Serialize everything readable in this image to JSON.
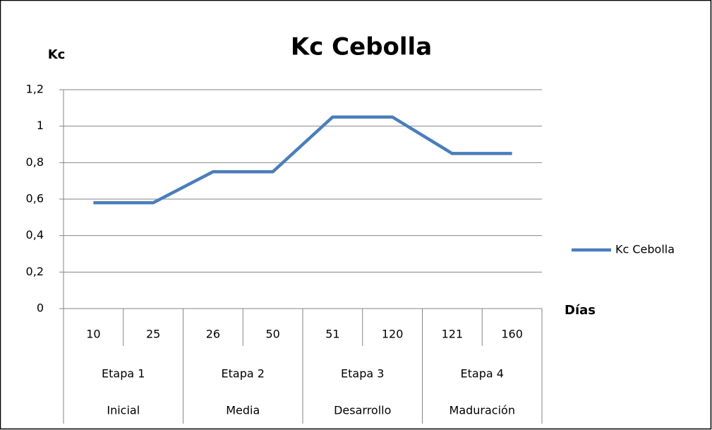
{
  "chart_data": {
    "type": "line",
    "title": "Kc Cebolla",
    "y_label": "Kc",
    "x_label": "Días",
    "categories": [
      "10",
      "25",
      "26",
      "50",
      "51",
      "120",
      "121",
      "160"
    ],
    "stage_labels": [
      "Etapa 1",
      "Etapa 2",
      "Etapa 3",
      "Etapa 4"
    ],
    "phase_labels": [
      "Inicial",
      "Media",
      "Desarrollo",
      "Maduración"
    ],
    "series": [
      {
        "name": "Kc Cebolla",
        "color": "#4a7ebb",
        "values": [
          0.58,
          0.58,
          0.75,
          0.75,
          1.05,
          1.05,
          0.85,
          0.85
        ]
      }
    ],
    "ylim": [
      0,
      1.2
    ],
    "yticks": [
      0,
      {
        "value": 0.2,
        "label": "0,2"
      },
      {
        "value": 0.4,
        "label": "0,4"
      },
      {
        "value": 0.6,
        "label": "0,6"
      },
      {
        "value": 0.8,
        "label": "0,8"
      },
      1,
      {
        "value": 1.2,
        "label": "1,2"
      }
    ],
    "grid": true,
    "legend": "right"
  }
}
